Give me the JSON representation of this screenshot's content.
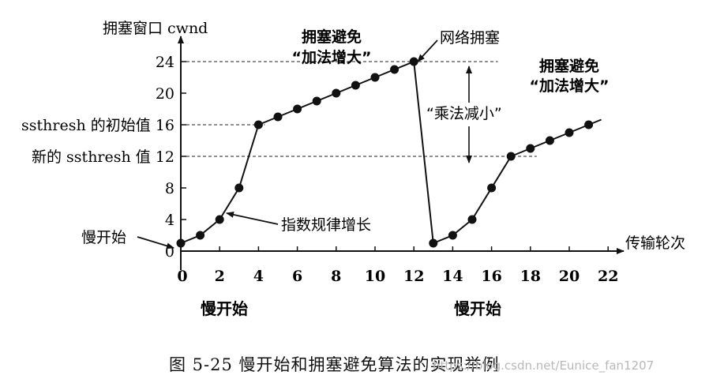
{
  "chart_data": {
    "type": "line",
    "ylabel": "拥塞窗口 cwnd",
    "xlabel": "传输轮次",
    "xlim": [
      0,
      22
    ],
    "ylim": [
      0,
      24
    ],
    "x_ticks": [
      {
        "value": 0,
        "label": "0"
      },
      {
        "value": 2,
        "label": "2"
      },
      {
        "value": 4,
        "label": "4"
      },
      {
        "value": 6,
        "label": "6"
      },
      {
        "value": 8,
        "label": "8"
      },
      {
        "value": 10,
        "label": "10"
      },
      {
        "value": 12,
        "label": "12"
      },
      {
        "value": 14,
        "label": "14"
      },
      {
        "value": 16,
        "label": "16"
      },
      {
        "value": 18,
        "label": "18"
      },
      {
        "value": 20,
        "label": "20"
      },
      {
        "value": 22,
        "label": "22"
      }
    ],
    "y_ticks": [
      {
        "value": 0,
        "label": "0"
      },
      {
        "value": 4,
        "label": "4"
      },
      {
        "value": 8,
        "label": "8"
      },
      {
        "value": 12,
        "label": "新的 ssthresh 值 12"
      },
      {
        "value": 16,
        "label": "ssthresh 的初始值 16"
      },
      {
        "value": 20,
        "label": "20"
      },
      {
        "value": 24,
        "label": "24"
      }
    ],
    "series": [
      {
        "x": [
          0,
          1,
          2,
          3,
          4,
          5,
          6,
          7,
          8,
          9,
          10,
          11,
          12,
          13,
          14,
          15,
          16,
          17,
          18,
          19,
          20,
          21
        ],
        "y": [
          1,
          2,
          4,
          8,
          16,
          17,
          18,
          19,
          20,
          21,
          22,
          23,
          24,
          1,
          2,
          4,
          8,
          12,
          13,
          14,
          15,
          16
        ]
      }
    ],
    "reference_lines": [
      {
        "y": 24,
        "x_from": 0,
        "x_to": 16
      },
      {
        "y": 16,
        "x_from": 0,
        "x_to": 4
      },
      {
        "y": 12,
        "x_from": 0,
        "x_to": 18
      }
    ],
    "annotations": {
      "ca1_line1": "拥塞避免",
      "ca1_line2": "“加法增大”",
      "congestion": "网络拥塞",
      "ca2_line1": "拥塞避免",
      "ca2_line2": "“加法增大”",
      "mult_decrease": "“乘法减小”",
      "exp_growth": "指数规律增长",
      "slow_start_arrow": "慢开始",
      "slow_start_1": "慢开始",
      "slow_start_2": "慢开始"
    }
  },
  "caption": "图 5-25   慢开始和拥塞避免算法的实现举例",
  "watermark": "https://blog.csdn.net/Eunice_fan1207"
}
